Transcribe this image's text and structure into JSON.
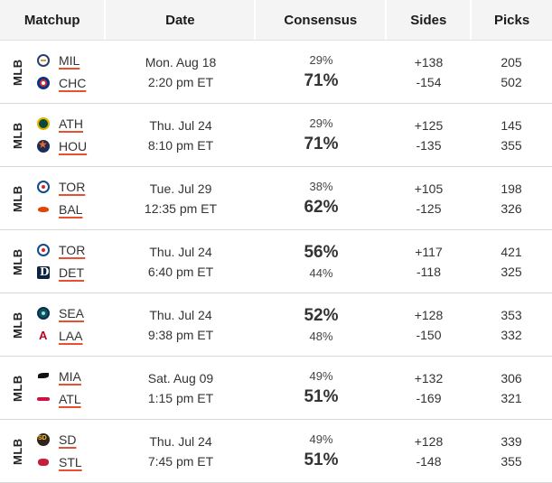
{
  "header": {
    "matchup": "Matchup",
    "date": "Date",
    "consensus": "Consensus",
    "sides": "Sides",
    "picks": "Picks"
  },
  "rows": [
    {
      "league": "MLB",
      "away": {
        "abbr": "MIL",
        "logo": "brewers-logo-icon"
      },
      "home": {
        "abbr": "CHC",
        "logo": "cubs-logo-icon"
      },
      "date": "Mon. Aug 18",
      "time": "2:20 pm ET",
      "cons_top": "29%",
      "cons_bottom": "71%",
      "favored": "bottom",
      "side_top": "+138",
      "side_bottom": "-154",
      "pick_top": "205",
      "pick_bottom": "502"
    },
    {
      "league": "MLB",
      "away": {
        "abbr": "ATH",
        "logo": "athletics-logo-icon"
      },
      "home": {
        "abbr": "HOU",
        "logo": "astros-logo-icon"
      },
      "date": "Thu. Jul 24",
      "time": "8:10 pm ET",
      "cons_top": "29%",
      "cons_bottom": "71%",
      "favored": "bottom",
      "side_top": "+125",
      "side_bottom": "-135",
      "pick_top": "145",
      "pick_bottom": "355"
    },
    {
      "league": "MLB",
      "away": {
        "abbr": "TOR",
        "logo": "blue-jays-logo-icon"
      },
      "home": {
        "abbr": "BAL",
        "logo": "orioles-logo-icon"
      },
      "date": "Tue. Jul 29",
      "time": "12:35 pm ET",
      "cons_top": "38%",
      "cons_bottom": "62%",
      "favored": "bottom",
      "side_top": "+105",
      "side_bottom": "-125",
      "pick_top": "198",
      "pick_bottom": "326"
    },
    {
      "league": "MLB",
      "away": {
        "abbr": "TOR",
        "logo": "blue-jays-logo-icon"
      },
      "home": {
        "abbr": "DET",
        "logo": "tigers-logo-icon"
      },
      "date": "Thu. Jul 24",
      "time": "6:40 pm ET",
      "cons_top": "56%",
      "cons_bottom": "44%",
      "favored": "top",
      "side_top": "+117",
      "side_bottom": "-118",
      "pick_top": "421",
      "pick_bottom": "325"
    },
    {
      "league": "MLB",
      "away": {
        "abbr": "SEA",
        "logo": "mariners-logo-icon"
      },
      "home": {
        "abbr": "LAA",
        "logo": "angels-logo-icon"
      },
      "date": "Thu. Jul 24",
      "time": "9:38 pm ET",
      "cons_top": "52%",
      "cons_bottom": "48%",
      "favored": "top",
      "side_top": "+128",
      "side_bottom": "-150",
      "pick_top": "353",
      "pick_bottom": "332"
    },
    {
      "league": "MLB",
      "away": {
        "abbr": "MIA",
        "logo": "marlins-logo-icon"
      },
      "home": {
        "abbr": "ATL",
        "logo": "braves-logo-icon"
      },
      "date": "Sat. Aug 09",
      "time": "1:15 pm ET",
      "cons_top": "49%",
      "cons_bottom": "51%",
      "favored": "bottom",
      "side_top": "+132",
      "side_bottom": "-169",
      "pick_top": "306",
      "pick_bottom": "321"
    },
    {
      "league": "MLB",
      "away": {
        "abbr": "SD",
        "logo": "padres-logo-icon"
      },
      "home": {
        "abbr": "STL",
        "logo": "cardinals-logo-icon"
      },
      "date": "Thu. Jul 24",
      "time": "7:45 pm ET",
      "cons_top": "49%",
      "cons_bottom": "51%",
      "favored": "bottom",
      "side_top": "+128",
      "side_bottom": "-148",
      "pick_top": "339",
      "pick_bottom": "355"
    }
  ]
}
